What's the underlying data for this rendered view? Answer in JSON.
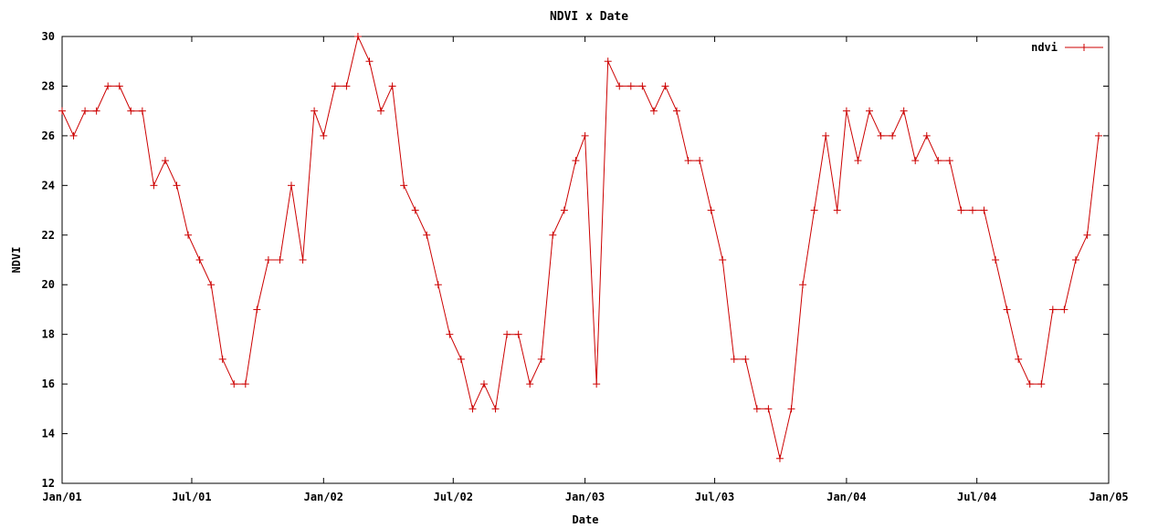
{
  "chart_data": {
    "type": "line",
    "title": "NDVI x Date",
    "xlabel": "Date",
    "ylabel": "NDVI",
    "ylim": [
      12,
      30
    ],
    "yticks": [
      12,
      14,
      16,
      18,
      20,
      22,
      24,
      26,
      28,
      30
    ],
    "xlim": [
      "2001-01-01",
      "2005-01-01"
    ],
    "xticks": [
      {
        "date": "2001-01-01",
        "label": "Jan/01"
      },
      {
        "date": "2001-07-01",
        "label": "Jul/01"
      },
      {
        "date": "2002-01-01",
        "label": "Jan/02"
      },
      {
        "date": "2002-07-01",
        "label": "Jul/02"
      },
      {
        "date": "2003-01-01",
        "label": "Jan/03"
      },
      {
        "date": "2003-07-01",
        "label": "Jul/03"
      },
      {
        "date": "2004-01-01",
        "label": "Jan/04"
      },
      {
        "date": "2004-07-01",
        "label": "Jul/04"
      },
      {
        "date": "2005-01-01",
        "label": "Jan/05"
      }
    ],
    "grid": false,
    "legend": "top-right",
    "colors": {
      "series": "#cc0000",
      "axes": "#000000"
    },
    "series": [
      {
        "name": "ndvi",
        "x": [
          "2001-01-01",
          "2001-01-17",
          "2001-02-02",
          "2001-02-18",
          "2001-03-06",
          "2001-03-22",
          "2001-04-07",
          "2001-04-23",
          "2001-05-09",
          "2001-05-25",
          "2001-06-10",
          "2001-06-26",
          "2001-07-12",
          "2001-07-28",
          "2001-08-13",
          "2001-08-29",
          "2001-09-14",
          "2001-09-30",
          "2001-10-16",
          "2001-11-01",
          "2001-11-17",
          "2001-12-03",
          "2001-12-19",
          "2002-01-01",
          "2002-01-17",
          "2002-02-02",
          "2002-02-18",
          "2002-03-06",
          "2002-03-22",
          "2002-04-07",
          "2002-04-23",
          "2002-05-09",
          "2002-05-25",
          "2002-06-10",
          "2002-06-26",
          "2002-07-12",
          "2002-07-28",
          "2002-08-13",
          "2002-08-29",
          "2002-09-14",
          "2002-09-30",
          "2002-10-16",
          "2002-11-01",
          "2002-11-17",
          "2002-12-03",
          "2002-12-19",
          "2003-01-01",
          "2003-01-17",
          "2003-02-02",
          "2003-02-18",
          "2003-03-06",
          "2003-03-22",
          "2003-04-07",
          "2003-04-23",
          "2003-05-09",
          "2003-05-25",
          "2003-06-10",
          "2003-06-26",
          "2003-07-12",
          "2003-07-28",
          "2003-08-13",
          "2003-08-29",
          "2003-09-14",
          "2003-09-30",
          "2003-10-16",
          "2003-11-01",
          "2003-11-17",
          "2003-12-03",
          "2003-12-19",
          "2004-01-01",
          "2004-01-17",
          "2004-02-02",
          "2004-02-18",
          "2004-03-05",
          "2004-03-21",
          "2004-04-06",
          "2004-04-22",
          "2004-05-08",
          "2004-05-24",
          "2004-06-09",
          "2004-06-25",
          "2004-07-11",
          "2004-07-27",
          "2004-08-12",
          "2004-08-28",
          "2004-09-13",
          "2004-09-29",
          "2004-10-15",
          "2004-10-31",
          "2004-11-16",
          "2004-12-02",
          "2004-12-18"
        ],
        "y": [
          27,
          26,
          27,
          27,
          28,
          28,
          27,
          27,
          24,
          25,
          24,
          22,
          21,
          20,
          17,
          16,
          16,
          19,
          21,
          21,
          24,
          21,
          27,
          26,
          28,
          28,
          30,
          29,
          27,
          28,
          24,
          23,
          22,
          20,
          18,
          17,
          15,
          16,
          15,
          18,
          18,
          16,
          17,
          22,
          23,
          25,
          26,
          16,
          29,
          28,
          28,
          28,
          27,
          28,
          27,
          25,
          25,
          23,
          21,
          17,
          17,
          15,
          15,
          13,
          15,
          20,
          23,
          26,
          23,
          27,
          25,
          27,
          26,
          26,
          27,
          25,
          26,
          25,
          25,
          23,
          23,
          23,
          21,
          19,
          17,
          16,
          16,
          19,
          19,
          21,
          22,
          26
        ]
      }
    ]
  }
}
